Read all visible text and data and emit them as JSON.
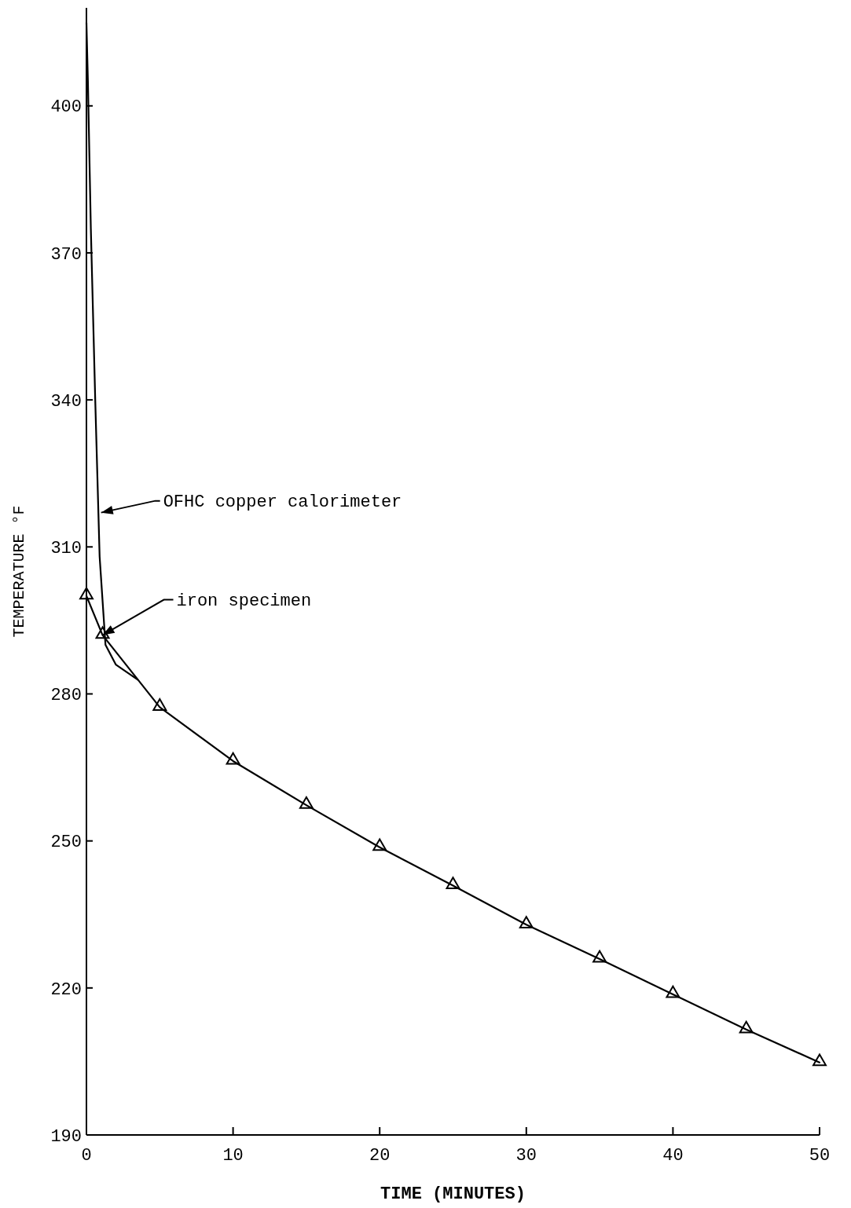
{
  "chart_data": {
    "type": "line",
    "xlabel": "TIME (MINUTES)",
    "ylabel": "TEMPERATURE °F",
    "xlim": [
      0,
      50
    ],
    "ylim": [
      190,
      420
    ],
    "xticks": [
      0,
      10,
      20,
      30,
      40,
      50
    ],
    "yticks": [
      190,
      220,
      250,
      280,
      310,
      340,
      370,
      400
    ],
    "grid": false,
    "line_style": "solid",
    "series": [
      {
        "color": "#000000",
        "marker": "none",
        "x": [
          0,
          0.1,
          0.3,
          0.6,
          0.9,
          1.3,
          2,
          3.5
        ],
        "values": [
          417,
          405,
          375,
          340,
          308,
          290,
          286,
          282.9
        ]
      },
      {
        "color": "#000000",
        "marker": "triangle",
        "x": [
          0,
          1.1,
          5,
          10,
          15,
          20,
          25,
          30,
          35,
          40,
          45,
          50
        ],
        "values": [
          300,
          292,
          277.3,
          266.3,
          257.3,
          248.7,
          240.9,
          232.9,
          225.9,
          218.7,
          211.5,
          204.8
        ]
      }
    ],
    "annotations": [
      {
        "text": "OFHC copper calorimeter",
        "x": 1,
        "y": 317
      },
      {
        "text": "iron specimen",
        "x": 1.1,
        "y": 292
      }
    ]
  }
}
